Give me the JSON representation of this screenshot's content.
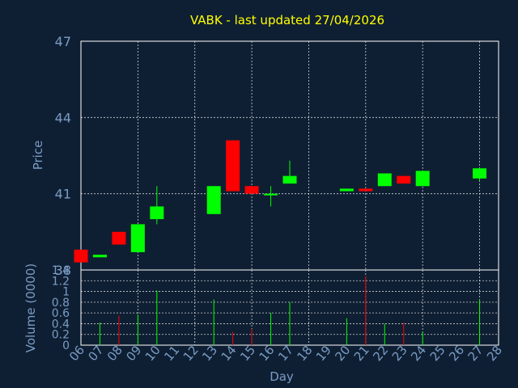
{
  "chart_data": [
    {
      "type": "candlestick",
      "title": "VABK - last updated 27/04/2026",
      "ylabel": "Price",
      "ylim": [
        38,
        47
      ],
      "yticks": [
        38,
        41,
        44,
        47
      ],
      "grid": true,
      "colors": {
        "background": "#0f1f33",
        "text": "#7a9cc4",
        "title": "#ffff00",
        "up": "#00ff00",
        "down": "#ff0000",
        "grid": "#ffffff",
        "axis": "#ffffff"
      },
      "candles": [
        {
          "day": "06",
          "open": 38.8,
          "high": 38.8,
          "low": 38.3,
          "close": 38.3
        },
        {
          "day": "07",
          "open": 38.5,
          "high": 38.6,
          "low": 38.5,
          "close": 38.6
        },
        {
          "day": "08",
          "open": 39.5,
          "high": 39.5,
          "low": 39.0,
          "close": 39.0
        },
        {
          "day": "09",
          "open": 38.7,
          "high": 39.8,
          "low": 38.7,
          "close": 39.8
        },
        {
          "day": "10",
          "open": 40.0,
          "high": 41.3,
          "low": 39.8,
          "close": 40.5
        },
        {
          "day": "13",
          "open": 40.2,
          "high": 41.3,
          "low": 40.2,
          "close": 41.3
        },
        {
          "day": "14",
          "open": 43.1,
          "high": 43.1,
          "low": 41.1,
          "close": 41.1
        },
        {
          "day": "15",
          "open": 41.3,
          "high": 41.3,
          "low": 41.0,
          "close": 41.0
        },
        {
          "day": "16",
          "open": 41.0,
          "high": 41.3,
          "low": 40.5,
          "close": 41.0
        },
        {
          "day": "17",
          "open": 41.4,
          "high": 42.3,
          "low": 41.4,
          "close": 41.7
        },
        {
          "day": "20",
          "open": 41.1,
          "high": 41.2,
          "low": 41.1,
          "close": 41.2
        },
        {
          "day": "21",
          "open": 41.2,
          "high": 41.2,
          "low": 41.1,
          "close": 41.1
        },
        {
          "day": "22",
          "open": 41.3,
          "high": 41.8,
          "low": 41.3,
          "close": 41.8
        },
        {
          "day": "23",
          "open": 41.7,
          "high": 41.7,
          "low": 41.4,
          "close": 41.4
        },
        {
          "day": "24",
          "open": 41.3,
          "high": 41.9,
          "low": 41.3,
          "close": 41.9
        },
        {
          "day": "27",
          "open": 41.6,
          "high": 42.0,
          "low": 41.5,
          "close": 42.0
        }
      ]
    },
    {
      "type": "bar",
      "ylabel": "Volume (0000)",
      "xlabel": "Day",
      "ylim": [
        0,
        1.4
      ],
      "yticks": [
        "0",
        "0.2",
        "0.4",
        "0.6",
        "0.8",
        "1",
        "1.2",
        "1.4"
      ],
      "categories": [
        "06",
        "07",
        "08",
        "09",
        "10",
        "11",
        "12",
        "13",
        "14",
        "15",
        "16",
        "17",
        "18",
        "19",
        "20",
        "21",
        "22",
        "23",
        "24",
        "25",
        "26",
        "27",
        "28"
      ],
      "bars": [
        {
          "day": "07",
          "value": 0.42,
          "color": "#00ff00"
        },
        {
          "day": "08",
          "value": 0.55,
          "color": "#ff0000"
        },
        {
          "day": "09",
          "value": 0.57,
          "color": "#00ff00"
        },
        {
          "day": "10",
          "value": 1.02,
          "color": "#00ff00"
        },
        {
          "day": "13",
          "value": 0.85,
          "color": "#00ff00"
        },
        {
          "day": "14",
          "value": 0.25,
          "color": "#ff0000"
        },
        {
          "day": "15",
          "value": 0.3,
          "color": "#ff0000"
        },
        {
          "day": "16",
          "value": 0.6,
          "color": "#00ff00"
        },
        {
          "day": "17",
          "value": 0.8,
          "color": "#00ff00"
        },
        {
          "day": "20",
          "value": 0.5,
          "color": "#00ff00"
        },
        {
          "day": "21",
          "value": 1.28,
          "color": "#ff0000"
        },
        {
          "day": "22",
          "value": 0.4,
          "color": "#00ff00"
        },
        {
          "day": "23",
          "value": 0.42,
          "color": "#ff0000"
        },
        {
          "day": "24",
          "value": 0.25,
          "color": "#00ff00"
        },
        {
          "day": "27",
          "value": 0.85,
          "color": "#00ff00"
        }
      ]
    }
  ]
}
